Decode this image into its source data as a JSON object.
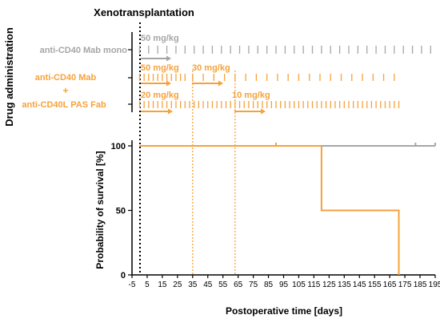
{
  "figure": {
    "event_label": "Xenotransplantation",
    "drug_axis_label": "Drug administration",
    "mono_label": "anti-CD40 Mab mono",
    "combo_label_top": "anti-CD40 Mab",
    "combo_plus": "+",
    "combo_label_bottom": "anti-CD40L PAS Fab"
  },
  "colors": {
    "orange": "#F7A13A",
    "gray": "#A6A6A6",
    "axis": "#000000"
  },
  "dosing": {
    "mono": {
      "doses": [
        {
          "label": "50 mg/kg",
          "from_day": 0
        }
      ],
      "tick_days": [
        0,
        6,
        12,
        18,
        24,
        30,
        36,
        42,
        48,
        54,
        60,
        66,
        72,
        78,
        84,
        90,
        96,
        102,
        108,
        114,
        120,
        126,
        132,
        138,
        144,
        150,
        156,
        162,
        168,
        174,
        180,
        186,
        192
      ]
    },
    "mab": {
      "doses": [
        {
          "label": "50 mg/kg",
          "from_day": 0
        },
        {
          "label": "30 mg/kg",
          "from_day": 35
        }
      ],
      "tick_days": [
        0,
        3,
        6,
        9,
        12,
        15,
        18,
        21,
        24,
        27,
        30,
        35,
        42,
        49,
        56,
        63,
        70,
        77,
        84,
        91,
        98,
        105,
        112,
        119,
        126,
        133,
        140,
        147,
        154,
        161,
        168
      ]
    },
    "fab": {
      "doses": [
        {
          "label": "20 mg/kg",
          "from_day": 0
        },
        {
          "label": "10 mg/kg",
          "from_day": 63
        }
      ],
      "tick_days": [
        0,
        3,
        6,
        9,
        12,
        15,
        18,
        21,
        24,
        27,
        30,
        33,
        36,
        39,
        42,
        45,
        48,
        51,
        54,
        57,
        60,
        63,
        66,
        69,
        72,
        75,
        78,
        81,
        84,
        87,
        90,
        93,
        96,
        99,
        102,
        105,
        108,
        111,
        114,
        117,
        120,
        123,
        126,
        129,
        132,
        135,
        138,
        141,
        144,
        147,
        150,
        153,
        156,
        159,
        162,
        165,
        168,
        171
      ]
    },
    "switch_days": [
      35,
      63
    ]
  },
  "chart_data": {
    "type": "line",
    "xlabel": "Postoperative time [days]",
    "ylabel": "Probability of survival [%]",
    "xlim": [
      -5,
      195
    ],
    "ylim": [
      0,
      100
    ],
    "x_ticks": [
      "-5",
      "5",
      "15",
      "25",
      "35",
      "45",
      "55",
      "65",
      "75",
      "85",
      "95",
      "105",
      "115",
      "125",
      "135",
      "145",
      "155",
      "165",
      "175",
      "185",
      "195"
    ],
    "y_ticks": [
      "0",
      "50",
      "100"
    ],
    "series": [
      {
        "color": "#F7A13A",
        "step_x": [
          0,
          120,
          120,
          171,
          171
        ],
        "step_y": [
          100,
          100,
          50,
          50,
          0
        ],
        "censor_x": [
          90
        ]
      },
      {
        "color": "#A6A6A6",
        "step_x": [
          120,
          195
        ],
        "step_y": [
          100,
          100
        ],
        "censor_x": [
          182,
          195
        ]
      }
    ]
  }
}
